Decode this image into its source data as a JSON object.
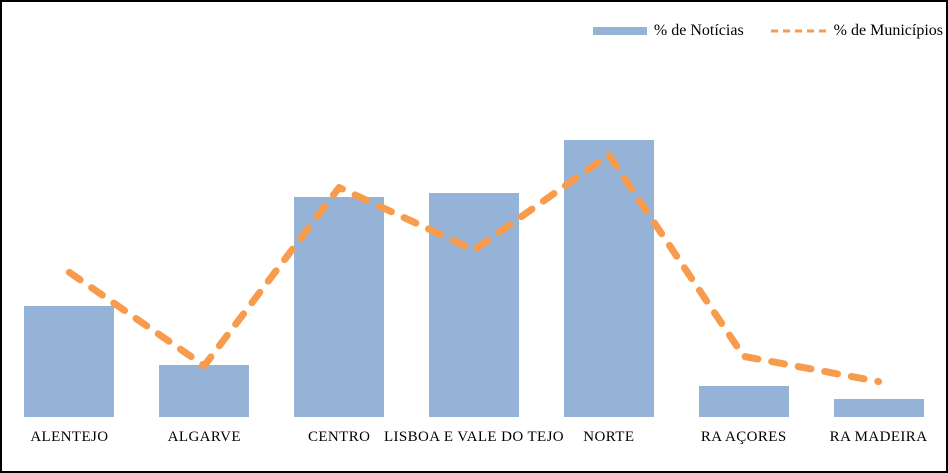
{
  "frame": {
    "background": "#FFFFFF",
    "border_color": "#000000"
  },
  "chart_data": {
    "type": "bar+line",
    "title": "",
    "xlabel": "",
    "ylabel": "",
    "categories": [
      "ALENTEJO",
      "ALGARVE",
      "CENTRO",
      "LISBOA E VALE DO TEJO",
      "NORTE",
      "RA AÇORES",
      "RA MADEIRA"
    ],
    "series": [
      {
        "name": "% de Notícias",
        "type": "bar",
        "color": "#95B3D7",
        "values": [
          11.9,
          5.6,
          23.6,
          24.0,
          29.7,
          3.3,
          1.9
        ]
      },
      {
        "name": "% de Municípios",
        "type": "line",
        "line_style": "dashed",
        "color": "#F89B4D",
        "values": [
          15.5,
          5.5,
          24.6,
          17.9,
          28.1,
          6.5,
          3.8
        ]
      }
    ],
    "ylim": [
      0,
      44.5
    ],
    "grid": false,
    "axes_visible": false,
    "legend_position": "top-right"
  }
}
